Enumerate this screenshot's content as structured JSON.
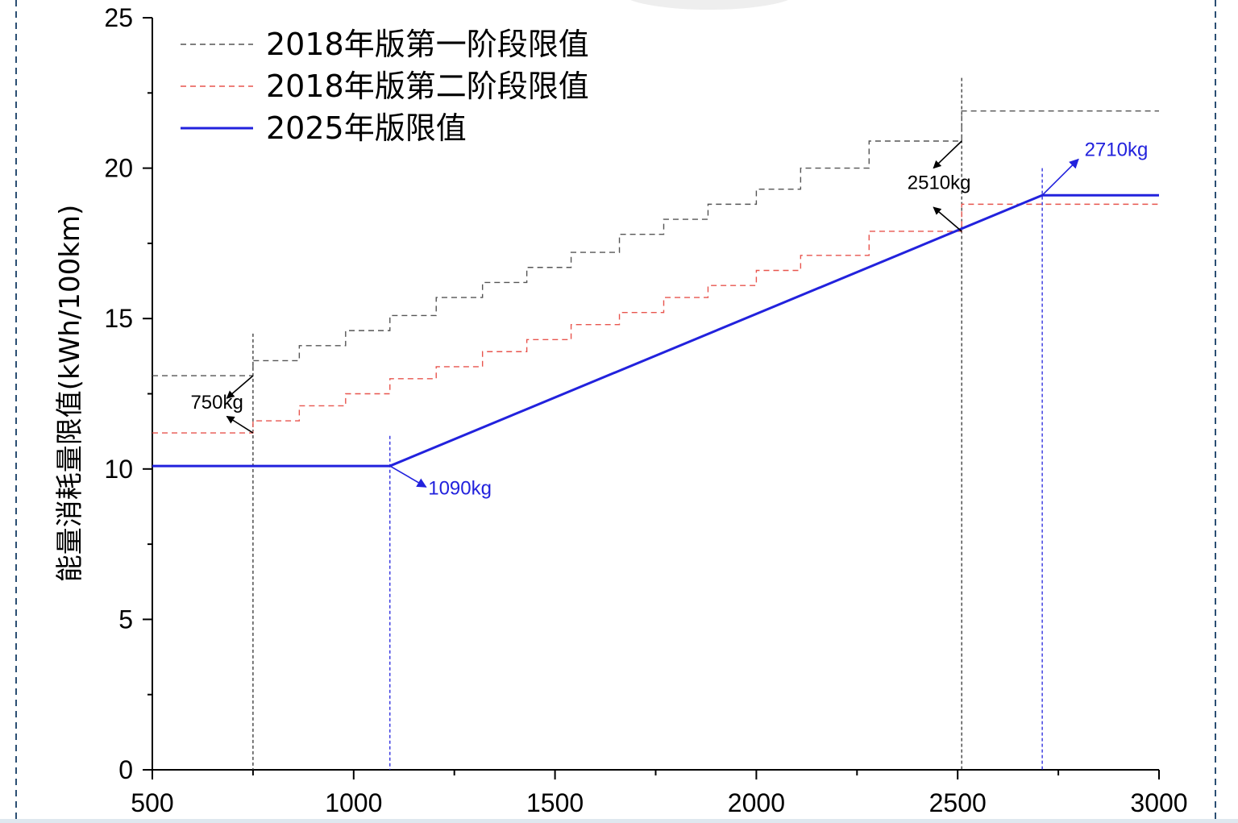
{
  "chart_data": {
    "type": "line",
    "xlim": [
      500,
      3000
    ],
    "ylim": [
      0,
      25
    ],
    "x_ticks": [
      "500",
      "1000",
      "1500",
      "2000",
      "2500",
      "3000"
    ],
    "y_ticks": [
      "0",
      "5",
      "10",
      "15",
      "20",
      "25"
    ],
    "ylabel": "能量消耗量限值(kWh/100km)",
    "xlabel": "",
    "legend_position": "top-left",
    "series": [
      {
        "name": "2018年版第一阶段限值",
        "color": "#555555",
        "style": "dashed-step",
        "x": [
          500,
          750,
          865,
          980,
          1090,
          1205,
          1320,
          1430,
          1540,
          1660,
          1770,
          1880,
          2000,
          2110,
          2280,
          2510,
          3000
        ],
        "y": [
          13.1,
          13.6,
          14.1,
          14.6,
          15.1,
          15.7,
          16.2,
          16.7,
          17.2,
          17.8,
          18.3,
          18.8,
          19.3,
          20.0,
          20.9,
          21.9,
          21.9
        ]
      },
      {
        "name": "2018年版第二阶段限值",
        "color": "#e8554e",
        "style": "dashed-step",
        "x": [
          500,
          750,
          865,
          980,
          1090,
          1205,
          1320,
          1430,
          1540,
          1660,
          1770,
          1880,
          2000,
          2110,
          2280,
          2510,
          3000
        ],
        "y": [
          11.2,
          11.6,
          12.1,
          12.5,
          13.0,
          13.4,
          13.9,
          14.3,
          14.8,
          15.2,
          15.7,
          16.1,
          16.6,
          17.1,
          17.9,
          18.8,
          18.8
        ]
      },
      {
        "name": "2025年版限值",
        "color": "#2222dd",
        "style": "solid",
        "x": [
          500,
          1090,
          2710,
          3000
        ],
        "y": [
          10.1,
          10.1,
          19.1,
          19.1
        ]
      }
    ],
    "vertical_markers": [
      {
        "x": 750,
        "y_top": 14.5,
        "color": "#333333"
      },
      {
        "x": 1090,
        "y_top": 11.1,
        "color": "#2222dd"
      },
      {
        "x": 2510,
        "y_top": 23.0,
        "color": "#333333"
      },
      {
        "x": 2710,
        "y_top": 20.0,
        "color": "#2222dd"
      }
    ],
    "annotations": [
      {
        "text": "750kg",
        "color": "#000000",
        "x": 595,
        "y": 12.0,
        "arrows": [
          {
            "from": [
              750,
              13.1
            ],
            "to": [
              685,
              12.35
            ]
          },
          {
            "from": [
              750,
              11.2
            ],
            "to": [
              685,
              11.75
            ]
          }
        ]
      },
      {
        "text": "1090kg",
        "color": "#2222dd",
        "x": 1185,
        "y": 9.15,
        "arrows": [
          {
            "from": [
              1090,
              10.1
            ],
            "to": [
              1180,
              9.4
            ]
          }
        ]
      },
      {
        "text": "2510kg",
        "color": "#000000",
        "x": 2375,
        "y": 19.3,
        "arrows": [
          {
            "from": [
              2510,
              20.9
            ],
            "to": [
              2440,
              20.0
            ]
          },
          {
            "from": [
              2510,
              17.9
            ],
            "to": [
              2440,
              18.7
            ]
          }
        ]
      },
      {
        "text": "2710kg",
        "color": "#2222dd",
        "x": 2815,
        "y": 20.4,
        "arrows": [
          {
            "from": [
              2710,
              19.1
            ],
            "to": [
              2800,
              20.3
            ]
          }
        ]
      }
    ]
  }
}
